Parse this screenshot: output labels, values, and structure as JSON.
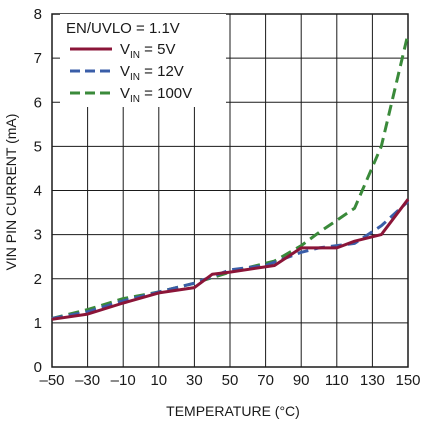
{
  "chart_data": {
    "type": "line",
    "title": "",
    "xlabel": "TEMPERATURE (°C)",
    "ylabel": "VIN PIN CURRENT (mA)",
    "xlim": [
      -50,
      150
    ],
    "ylim": [
      0,
      8
    ],
    "xticks": [
      -50,
      -30,
      -10,
      10,
      30,
      50,
      70,
      90,
      110,
      130,
      150
    ],
    "xtick_labels": [
      "–50",
      "–30",
      "–10",
      "10",
      "30",
      "50",
      "70",
      "90",
      "110",
      "130",
      "150"
    ],
    "yticks": [
      0,
      1,
      2,
      3,
      4,
      5,
      6,
      7,
      8
    ],
    "ytick_labels": [
      "0",
      "1",
      "2",
      "3",
      "4",
      "5",
      "6",
      "7",
      "8"
    ],
    "grid": true,
    "legend_position": "top-left",
    "annotation": "EN/UVLO = 1.1V",
    "series": [
      {
        "name": "V_IN = 5V",
        "label_main": "V",
        "label_sub": "IN",
        "label_rest": " = 5V",
        "color": "#8b1538",
        "style": "solid",
        "x": [
          -50,
          -30,
          -10,
          10,
          30,
          40,
          50,
          75,
          90,
          110,
          120,
          135,
          150
        ],
        "y": [
          1.08,
          1.2,
          1.45,
          1.68,
          1.8,
          2.1,
          2.15,
          2.3,
          2.7,
          2.7,
          2.85,
          3.0,
          3.8
        ]
      },
      {
        "name": "V_IN = 12V",
        "label_main": "V",
        "label_sub": "IN",
        "label_rest": " = 12V",
        "color": "#3a5ea8",
        "style": "dashed",
        "x": [
          -50,
          -30,
          -10,
          10,
          30,
          50,
          70,
          90,
          100,
          120,
          135,
          150
        ],
        "y": [
          1.1,
          1.25,
          1.5,
          1.7,
          1.9,
          2.2,
          2.3,
          2.6,
          2.7,
          2.8,
          3.2,
          3.75
        ]
      },
      {
        "name": "V_IN = 100V",
        "label_main": "V",
        "label_sub": "IN",
        "label_rest": " = 100V",
        "color": "#3a8a3a",
        "style": "dashed",
        "x": [
          -50,
          -30,
          -10,
          10,
          30,
          50,
          75,
          90,
          100,
          120,
          135,
          150
        ],
        "y": [
          1.1,
          1.3,
          1.55,
          1.7,
          1.9,
          2.15,
          2.4,
          2.75,
          3.05,
          3.6,
          5.0,
          7.55
        ]
      }
    ]
  }
}
